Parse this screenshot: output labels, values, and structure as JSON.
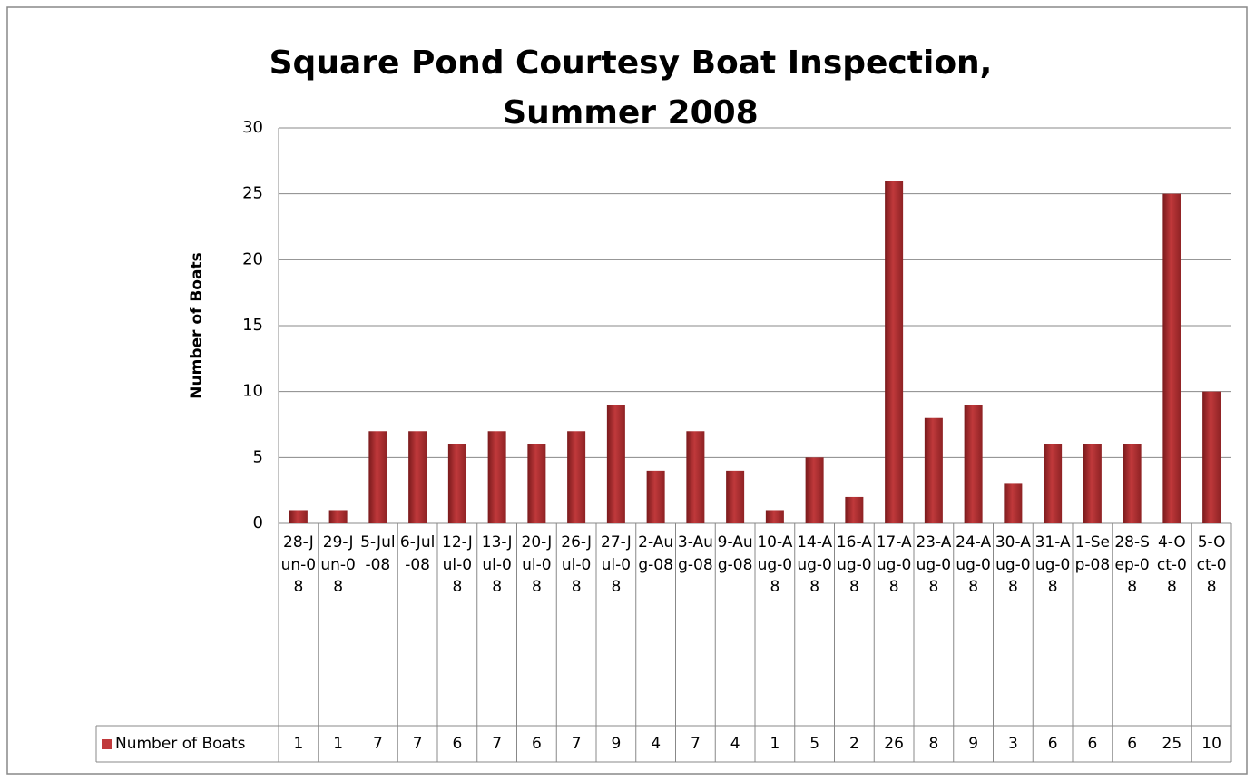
{
  "chart_data": {
    "type": "bar",
    "title": "Square Pond Courtesy Boat Inspection, Summer 2008",
    "y_label": "Number of Boats",
    "categories": [
      "28-Jun-08",
      "29-Jun-08",
      "5-Jul-08",
      "6-Jul-08",
      "12-Jul-08",
      "13-Jul-08",
      "20-Jul-08",
      "26-Jul-08",
      "27-Jul-08",
      "2-Aug-08",
      "3-Aug-08",
      "9-Aug-08",
      "10-Aug-08",
      "14-Aug-08",
      "16-Aug-08",
      "17-Aug-08",
      "23-Aug-08",
      "24-Aug-08",
      "30-Aug-08",
      "31-Aug-08",
      "1-Sep-08",
      "28-Sep-08",
      "4-Oct-08",
      "5-Oct-08"
    ],
    "series": [
      {
        "name": "Number of Boats",
        "color": "#c0393b",
        "values": [
          1,
          1,
          7,
          7,
          6,
          7,
          6,
          7,
          9,
          4,
          7,
          4,
          1,
          5,
          2,
          26,
          8,
          9,
          3,
          6,
          6,
          6,
          25,
          10
        ]
      }
    ],
    "ylim": [
      0,
      30
    ],
    "yticks": [
      0,
      5,
      10,
      15,
      20,
      25,
      30
    ],
    "grid": true,
    "data_table": true
  }
}
